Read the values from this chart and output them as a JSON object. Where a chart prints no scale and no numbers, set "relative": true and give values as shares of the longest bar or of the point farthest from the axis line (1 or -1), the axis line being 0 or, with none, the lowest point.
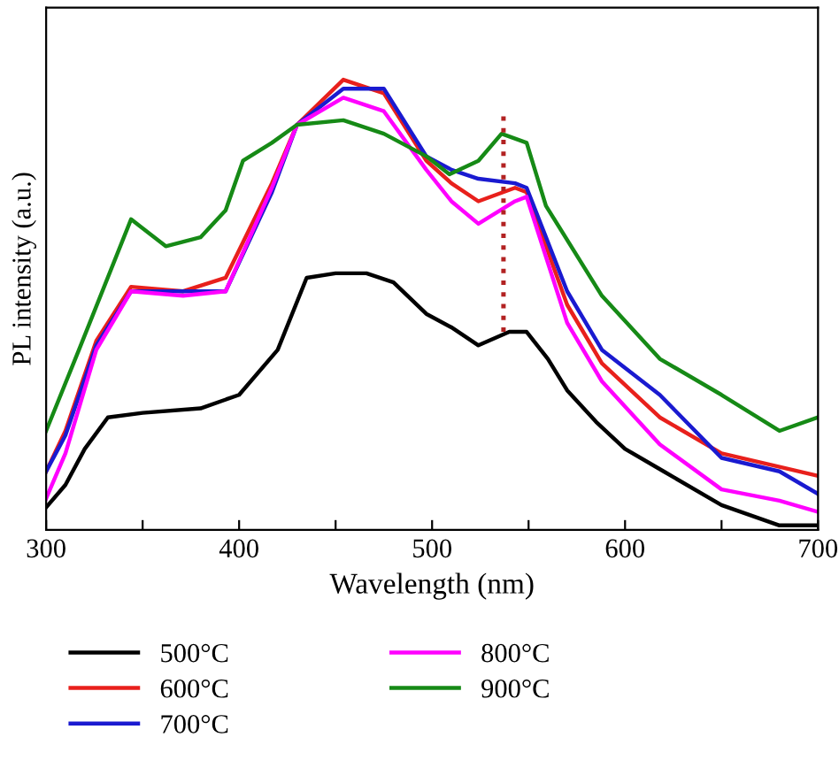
{
  "chart_data": {
    "type": "line",
    "relative": true,
    "xlabel": "Wavelength (nm)",
    "ylabel": "PL intensity (a.u.)",
    "xlim": [
      300,
      700
    ],
    "xticks": [
      300,
      {
        "value": 350,
        "label": null
      },
      400,
      {
        "value": 450,
        "label": null
      },
      500,
      {
        "value": 550,
        "label": null
      },
      600,
      {
        "value": 650,
        "label": null
      },
      700
    ],
    "legend": "bottom",
    "grid": false,
    "marker": "none",
    "line_style": "solid",
    "series": [
      {
        "name": "500°C",
        "color": "#000000",
        "x": [
          300,
          310,
          320,
          332,
          350,
          380,
          400,
          420,
          435,
          450,
          466,
          480,
          497,
          510,
          524,
          540,
          549,
          560,
          570,
          585,
          600,
          620,
          650,
          680,
          700
        ],
        "values": [
          0.05,
          0.1,
          0.18,
          0.25,
          0.26,
          0.27,
          0.3,
          0.4,
          0.56,
          0.57,
          0.57,
          0.55,
          0.48,
          0.45,
          0.41,
          0.44,
          0.44,
          0.38,
          0.31,
          0.24,
          0.18,
          0.13,
          0.055,
          0.01,
          0.01
        ]
      },
      {
        "name": "600°C",
        "color": "#e8201c",
        "x": [
          300,
          310,
          326,
          344,
          371,
          393,
          417,
          430,
          454,
          475,
          497,
          510,
          524,
          543,
          549,
          570,
          588,
          618,
          650,
          680,
          700
        ],
        "values": [
          0.13,
          0.22,
          0.42,
          0.54,
          0.53,
          0.56,
          0.77,
          0.9,
          1.0,
          0.97,
          0.82,
          0.77,
          0.73,
          0.76,
          0.75,
          0.5,
          0.37,
          0.25,
          0.17,
          0.14,
          0.12
        ]
      },
      {
        "name": "700°C",
        "color": "#1a1ad0",
        "x": [
          300,
          310,
          326,
          344,
          371,
          393,
          417,
          430,
          454,
          475,
          497,
          510,
          524,
          543,
          549,
          570,
          588,
          618,
          650,
          680,
          700
        ],
        "values": [
          0.13,
          0.21,
          0.41,
          0.53,
          0.53,
          0.53,
          0.75,
          0.9,
          0.98,
          0.98,
          0.83,
          0.8,
          0.78,
          0.77,
          0.76,
          0.53,
          0.4,
          0.3,
          0.16,
          0.13,
          0.08
        ]
      },
      {
        "name": "800°C",
        "color": "#ff00ff",
        "x": [
          300,
          310,
          326,
          344,
          371,
          393,
          417,
          430,
          454,
          475,
          497,
          510,
          524,
          543,
          549,
          570,
          588,
          618,
          650,
          680,
          700
        ],
        "values": [
          0.07,
          0.17,
          0.4,
          0.53,
          0.52,
          0.53,
          0.76,
          0.9,
          0.96,
          0.93,
          0.8,
          0.73,
          0.68,
          0.73,
          0.74,
          0.46,
          0.33,
          0.19,
          0.09,
          0.065,
          0.04
        ]
      },
      {
        "name": "900°C",
        "color": "#168a16",
        "x": [
          300,
          317,
          344,
          362,
          380,
          393,
          402,
          417,
          430,
          454,
          475,
          497,
          509,
          524,
          536,
          549,
          559,
          588,
          618,
          650,
          680,
          700
        ],
        "values": [
          0.22,
          0.4,
          0.69,
          0.63,
          0.65,
          0.71,
          0.82,
          0.86,
          0.9,
          0.91,
          0.88,
          0.83,
          0.79,
          0.82,
          0.88,
          0.86,
          0.72,
          0.52,
          0.38,
          0.3,
          0.22,
          0.25
        ]
      },
      {
        "color": "#b22222",
        "line_style": "dotted",
        "x": [
          537,
          537
        ],
        "values": [
          0.44,
          0.92
        ]
      }
    ]
  }
}
